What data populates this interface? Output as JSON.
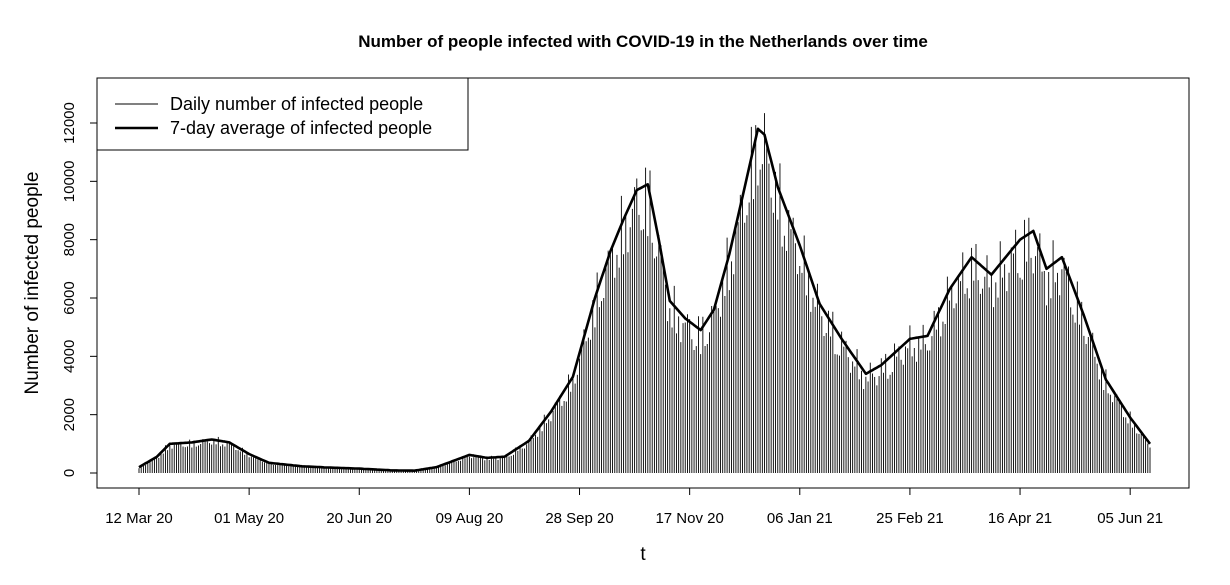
{
  "chart_data": {
    "type": "line",
    "title": "Number of people infected with COVID-19 in the Netherlands over time",
    "xlabel": "t",
    "ylabel": "Number of infected people",
    "x_start": "2020-03-12",
    "x_end": "2021-06-14",
    "x_ticks": [
      "12 Mar 20",
      "01 May 20",
      "20 Jun 20",
      "09 Aug 20",
      "28 Sep 20",
      "17 Nov 20",
      "06 Jan 21",
      "25 Feb 21",
      "16 Apr 21",
      "05 Jun 21"
    ],
    "x_tick_dates": [
      "2020-03-12",
      "2020-05-01",
      "2020-06-20",
      "2020-08-09",
      "2020-09-28",
      "2020-11-17",
      "2021-01-06",
      "2021-02-25",
      "2021-04-16",
      "2021-06-05"
    ],
    "ylim": [
      0,
      12700
    ],
    "y_ticks": [
      0,
      2000,
      4000,
      6000,
      8000,
      10000,
      12000
    ],
    "legend_position": "top-left",
    "grid": false,
    "series": [
      {
        "name": "Daily number of infected people",
        "style": "vertical lines",
        "lwd": "thin",
        "keypoints": [
          [
            "2020-03-12",
            200
          ],
          [
            "2020-03-20",
            550
          ],
          [
            "2020-03-26",
            1000
          ],
          [
            "2020-04-05",
            1050
          ],
          [
            "2020-04-14",
            1150
          ],
          [
            "2020-04-22",
            1050
          ],
          [
            "2020-05-01",
            650
          ],
          [
            "2020-05-10",
            350
          ],
          [
            "2020-05-25",
            230
          ],
          [
            "2020-06-05",
            190
          ],
          [
            "2020-06-20",
            150
          ],
          [
            "2020-07-05",
            90
          ],
          [
            "2020-07-15",
            80
          ],
          [
            "2020-07-25",
            200
          ],
          [
            "2020-08-09",
            620
          ],
          [
            "2020-08-17",
            520
          ],
          [
            "2020-08-25",
            560
          ],
          [
            "2020-09-05",
            1100
          ],
          [
            "2020-09-15",
            2100
          ],
          [
            "2020-09-25",
            3300
          ],
          [
            "2020-10-05",
            6000
          ],
          [
            "2020-10-12",
            7600
          ],
          [
            "2020-10-18",
            8700
          ],
          [
            "2020-10-24",
            9700
          ],
          [
            "2020-10-29",
            9900
          ],
          [
            "2020-11-03",
            8000
          ],
          [
            "2020-11-08",
            5900
          ],
          [
            "2020-11-15",
            5300
          ],
          [
            "2020-11-22",
            4900
          ],
          [
            "2020-11-28",
            5600
          ],
          [
            "2020-12-05",
            7500
          ],
          [
            "2020-12-12",
            9800
          ],
          [
            "2020-12-18",
            11800
          ],
          [
            "2020-12-21",
            11600
          ],
          [
            "2020-12-27",
            9800
          ],
          [
            "2021-01-06",
            7800
          ],
          [
            "2021-01-15",
            5800
          ],
          [
            "2021-01-25",
            4600
          ],
          [
            "2021-02-05",
            3400
          ],
          [
            "2021-02-12",
            3700
          ],
          [
            "2021-02-25",
            4600
          ],
          [
            "2021-03-05",
            4700
          ],
          [
            "2021-03-15",
            6300
          ],
          [
            "2021-03-25",
            7400
          ],
          [
            "2021-04-03",
            6800
          ],
          [
            "2021-04-16",
            8000
          ],
          [
            "2021-04-22",
            8300
          ],
          [
            "2021-04-28",
            7000
          ],
          [
            "2021-05-05",
            7400
          ],
          [
            "2021-05-15",
            5400
          ],
          [
            "2021-05-25",
            3200
          ],
          [
            "2021-06-05",
            1900
          ],
          [
            "2021-06-14",
            1000
          ]
        ]
      },
      {
        "name": "7-day average of infected people",
        "style": "line",
        "lwd": "thick",
        "keypoints": [
          [
            "2020-03-12",
            200
          ],
          [
            "2020-03-20",
            550
          ],
          [
            "2020-03-26",
            1000
          ],
          [
            "2020-04-05",
            1050
          ],
          [
            "2020-04-14",
            1150
          ],
          [
            "2020-04-22",
            1050
          ],
          [
            "2020-05-01",
            650
          ],
          [
            "2020-05-10",
            350
          ],
          [
            "2020-05-25",
            230
          ],
          [
            "2020-06-05",
            190
          ],
          [
            "2020-06-20",
            150
          ],
          [
            "2020-07-05",
            90
          ],
          [
            "2020-07-15",
            80
          ],
          [
            "2020-07-25",
            200
          ],
          [
            "2020-08-09",
            620
          ],
          [
            "2020-08-17",
            520
          ],
          [
            "2020-08-25",
            560
          ],
          [
            "2020-09-05",
            1100
          ],
          [
            "2020-09-15",
            2100
          ],
          [
            "2020-09-25",
            3300
          ],
          [
            "2020-10-05",
            6000
          ],
          [
            "2020-10-12",
            7600
          ],
          [
            "2020-10-18",
            8700
          ],
          [
            "2020-10-24",
            9700
          ],
          [
            "2020-10-29",
            9900
          ],
          [
            "2020-11-03",
            8000
          ],
          [
            "2020-11-08",
            5900
          ],
          [
            "2020-11-15",
            5300
          ],
          [
            "2020-11-22",
            4900
          ],
          [
            "2020-11-28",
            5600
          ],
          [
            "2020-12-05",
            7500
          ],
          [
            "2020-12-12",
            9800
          ],
          [
            "2020-12-18",
            11800
          ],
          [
            "2020-12-21",
            11600
          ],
          [
            "2020-12-27",
            9800
          ],
          [
            "2021-01-06",
            7800
          ],
          [
            "2021-01-15",
            5800
          ],
          [
            "2021-01-25",
            4600
          ],
          [
            "2021-02-05",
            3400
          ],
          [
            "2021-02-12",
            3700
          ],
          [
            "2021-02-25",
            4600
          ],
          [
            "2021-03-05",
            4700
          ],
          [
            "2021-03-15",
            6300
          ],
          [
            "2021-03-25",
            7400
          ],
          [
            "2021-04-03",
            6800
          ],
          [
            "2021-04-16",
            8000
          ],
          [
            "2021-04-22",
            8300
          ],
          [
            "2021-04-28",
            7000
          ],
          [
            "2021-05-05",
            7400
          ],
          [
            "2021-05-15",
            5400
          ],
          [
            "2021-05-25",
            3200
          ],
          [
            "2021-06-05",
            1900
          ],
          [
            "2021-06-14",
            1000
          ]
        ]
      }
    ]
  }
}
